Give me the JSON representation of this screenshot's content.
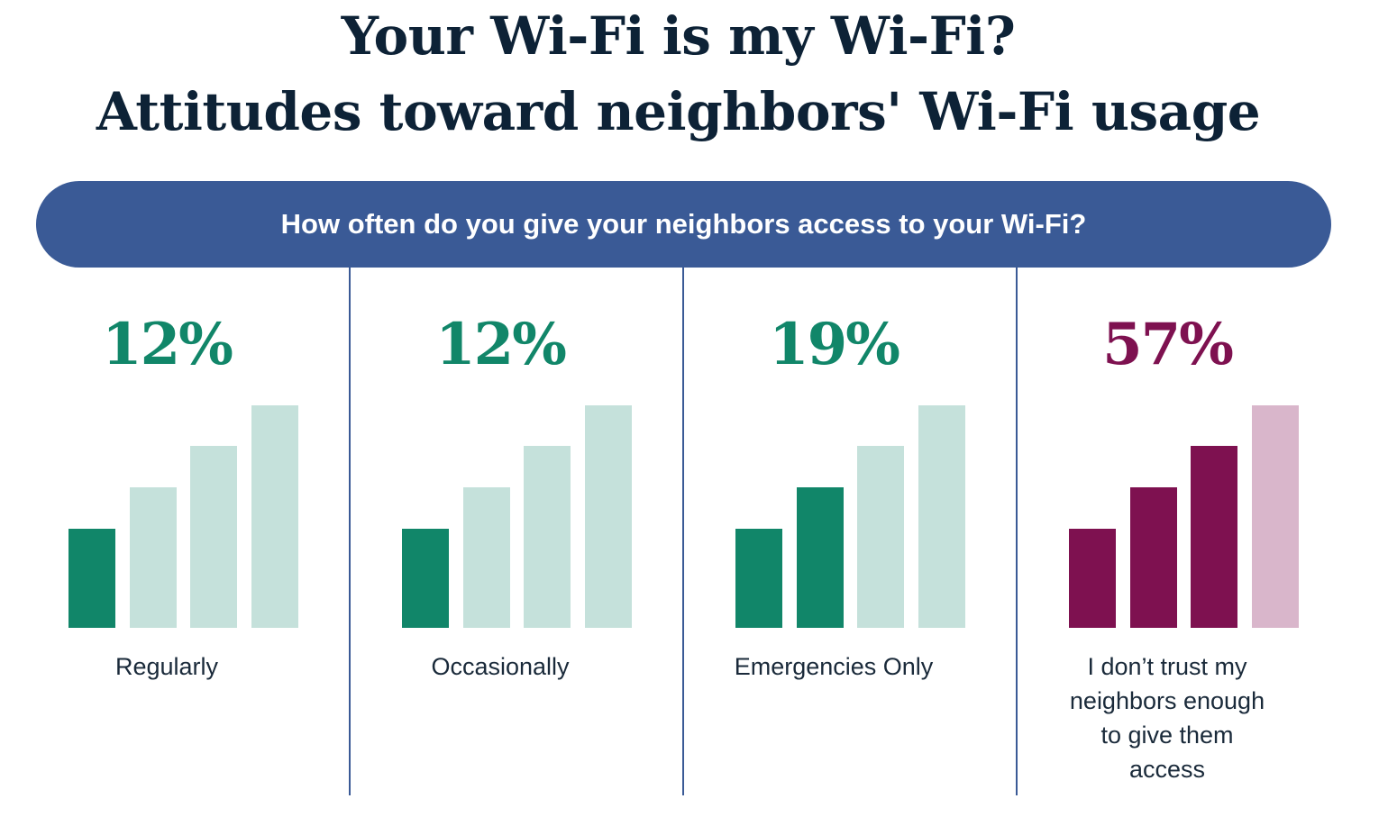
{
  "title_line1": "Your Wi-Fi is my Wi-Fi?",
  "title_line2": "Attitudes toward neighbors' Wi-Fi usage",
  "question": "How often do you give your neighbors access to your Wi-Fi?",
  "colors": {
    "title": "#0d2236",
    "banner": "#3a5a96",
    "green": "#118669",
    "green_light": "#c5e1db",
    "maroon": "#7e1150",
    "maroon_light": "#d9b6cb"
  },
  "chart_data": {
    "type": "bar",
    "title": "Your Wi-Fi is my Wi-Fi? Attitudes toward neighbors' Wi-Fi usage",
    "categories": [
      "Regularly",
      "Occasionally",
      "Emergencies Only",
      "I don’t trust my neighbors enough to give them access"
    ],
    "values": [
      12,
      12,
      19,
      57
    ],
    "value_labels": [
      "12%",
      "12%",
      "19%",
      "57%"
    ],
    "signal_bars_filled": [
      1,
      1,
      2,
      3
    ],
    "signal_bars_total": 4,
    "panel_colors": [
      "green",
      "green",
      "green",
      "maroon"
    ]
  }
}
